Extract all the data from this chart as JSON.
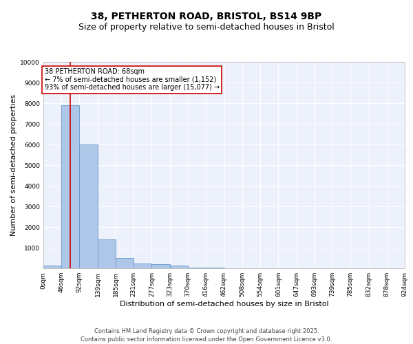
{
  "title_line1": "38, PETHERTON ROAD, BRISTOL, BS14 9BP",
  "title_line2": "Size of property relative to semi-detached houses in Bristol",
  "xlabel": "Distribution of semi-detached houses by size in Bristol",
  "ylabel": "Number of semi-detached properties",
  "bin_edges": [
    0,
    46,
    92,
    139,
    185,
    231,
    277,
    323,
    370,
    416,
    462,
    508,
    554,
    601,
    647,
    693,
    739,
    785,
    832,
    878,
    924
  ],
  "bar_heights": [
    150,
    7900,
    6000,
    1400,
    500,
    230,
    190,
    130,
    50,
    20,
    10,
    5,
    3,
    2,
    1,
    1,
    0,
    0,
    0,
    0
  ],
  "bar_color": "#aec6e8",
  "bar_edgecolor": "#6699cc",
  "property_size": 68,
  "red_line_color": "#cc0000",
  "annotation_text": "38 PETHERTON ROAD: 68sqm\n← 7% of semi-detached houses are smaller (1,152)\n93% of semi-detached houses are larger (15,077) →",
  "annotation_box_color": "#cc0000",
  "ylim": [
    0,
    10000
  ],
  "yticks": [
    0,
    1000,
    2000,
    3000,
    4000,
    5000,
    6000,
    7000,
    8000,
    9000,
    10000
  ],
  "background_color": "#edf1fb",
  "grid_color": "#ffffff",
  "footer_line1": "Contains HM Land Registry data © Crown copyright and database right 2025.",
  "footer_line2": "Contains public sector information licensed under the Open Government Licence v3.0.",
  "title_fontsize": 10,
  "subtitle_fontsize": 9,
  "tick_fontsize": 6.5,
  "label_fontsize": 8,
  "annotation_fontsize": 7,
  "footer_fontsize": 6
}
